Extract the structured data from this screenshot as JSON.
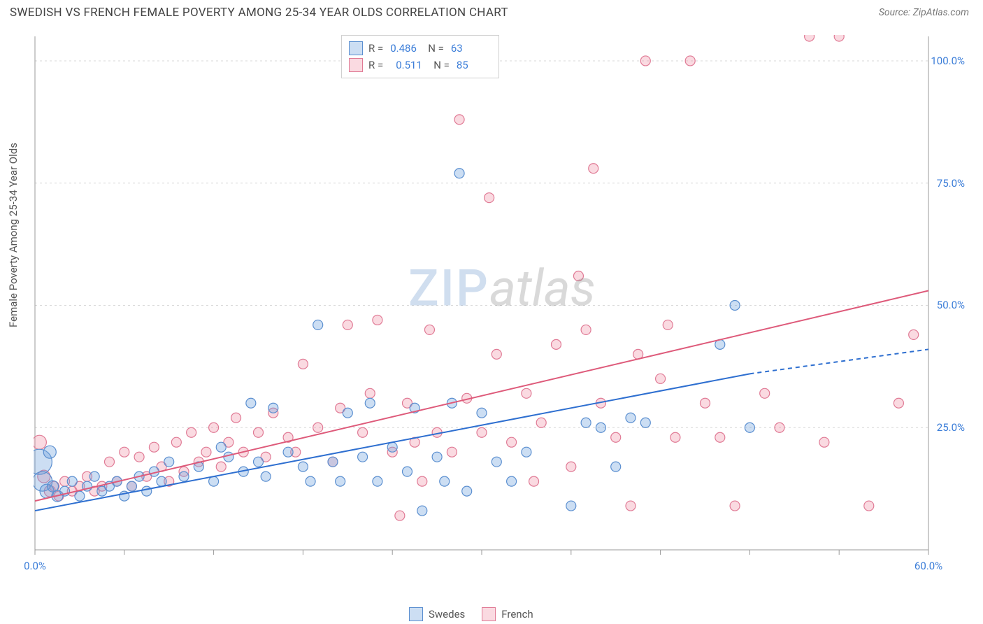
{
  "header": {
    "title": "SWEDISH VS FRENCH FEMALE POVERTY AMONG 25-34 YEAR OLDS CORRELATION CHART",
    "source_prefix": "Source: ",
    "source_name": "ZipAtlas.com"
  },
  "watermark": {
    "zip": "ZIP",
    "atlas": "atlas"
  },
  "chart": {
    "type": "scatter",
    "ylabel": "Female Poverty Among 25-34 Year Olds",
    "xlim": [
      0,
      60
    ],
    "ylim": [
      0,
      105
    ],
    "xtick_positions": [
      0,
      6,
      12,
      18,
      24,
      30,
      36,
      42,
      48,
      54,
      60
    ],
    "xtick_labels_shown": {
      "0": "0.0%",
      "60": "60.0%"
    },
    "ytick_positions": [
      25,
      50,
      75,
      100
    ],
    "ytick_labels": [
      "25.0%",
      "50.0%",
      "75.0%",
      "100.0%"
    ],
    "grid_color": "#d8d8d8",
    "axis_color": "#999999",
    "background": "#ffffff",
    "series": {
      "swedes": {
        "label": "Swedes",
        "fill": "rgba(110,160,220,0.35)",
        "stroke": "#5b8fd0",
        "line_color": "#2e6fd0",
        "trend": {
          "x1": 0,
          "y1": 8,
          "x2": 48,
          "y2": 36,
          "dash_after_x": 48,
          "x_end": 60,
          "y_end": 41
        },
        "stats": {
          "R_label": "R =",
          "R": "0.486",
          "N_label": "N =",
          "N": "63"
        },
        "points": [
          {
            "x": 0.3,
            "y": 18,
            "r": 18
          },
          {
            "x": 0.5,
            "y": 14,
            "r": 14
          },
          {
            "x": 0.8,
            "y": 12,
            "r": 10
          },
          {
            "x": 1.0,
            "y": 20,
            "r": 9
          },
          {
            "x": 1.2,
            "y": 13,
            "r": 8
          },
          {
            "x": 1.5,
            "y": 11,
            "r": 8
          },
          {
            "x": 2,
            "y": 12,
            "r": 7
          },
          {
            "x": 2.5,
            "y": 14,
            "r": 7
          },
          {
            "x": 3,
            "y": 11,
            "r": 7
          },
          {
            "x": 3.5,
            "y": 13,
            "r": 7
          },
          {
            "x": 4,
            "y": 15,
            "r": 7
          },
          {
            "x": 4.5,
            "y": 12,
            "r": 7
          },
          {
            "x": 5,
            "y": 13,
            "r": 7
          },
          {
            "x": 5.5,
            "y": 14,
            "r": 7
          },
          {
            "x": 6,
            "y": 11,
            "r": 7
          },
          {
            "x": 6.5,
            "y": 13,
            "r": 7
          },
          {
            "x": 7,
            "y": 15,
            "r": 7
          },
          {
            "x": 7.5,
            "y": 12,
            "r": 7
          },
          {
            "x": 8,
            "y": 16,
            "r": 7
          },
          {
            "x": 8.5,
            "y": 14,
            "r": 7
          },
          {
            "x": 9,
            "y": 18,
            "r": 7
          },
          {
            "x": 10,
            "y": 15,
            "r": 7
          },
          {
            "x": 11,
            "y": 17,
            "r": 7
          },
          {
            "x": 12,
            "y": 14,
            "r": 7
          },
          {
            "x": 12.5,
            "y": 21,
            "r": 7
          },
          {
            "x": 13,
            "y": 19,
            "r": 7
          },
          {
            "x": 14,
            "y": 16,
            "r": 7
          },
          {
            "x": 14.5,
            "y": 30,
            "r": 7
          },
          {
            "x": 15,
            "y": 18,
            "r": 7
          },
          {
            "x": 15.5,
            "y": 15,
            "r": 7
          },
          {
            "x": 16,
            "y": 29,
            "r": 7
          },
          {
            "x": 17,
            "y": 20,
            "r": 7
          },
          {
            "x": 18,
            "y": 17,
            "r": 7
          },
          {
            "x": 18.5,
            "y": 14,
            "r": 7
          },
          {
            "x": 19,
            "y": 46,
            "r": 7
          },
          {
            "x": 20,
            "y": 18,
            "r": 7
          },
          {
            "x": 20.5,
            "y": 14,
            "r": 7
          },
          {
            "x": 21,
            "y": 28,
            "r": 7
          },
          {
            "x": 22,
            "y": 19,
            "r": 7
          },
          {
            "x": 22.5,
            "y": 30,
            "r": 7
          },
          {
            "x": 23,
            "y": 14,
            "r": 7
          },
          {
            "x": 24,
            "y": 21,
            "r": 7
          },
          {
            "x": 25,
            "y": 16,
            "r": 7
          },
          {
            "x": 25.5,
            "y": 29,
            "r": 7
          },
          {
            "x": 26,
            "y": 8,
            "r": 7
          },
          {
            "x": 27,
            "y": 19,
            "r": 7
          },
          {
            "x": 27.5,
            "y": 14,
            "r": 7
          },
          {
            "x": 28,
            "y": 30,
            "r": 7
          },
          {
            "x": 28.5,
            "y": 77,
            "r": 7
          },
          {
            "x": 29,
            "y": 12,
            "r": 7
          },
          {
            "x": 30,
            "y": 28,
            "r": 7
          },
          {
            "x": 31,
            "y": 18,
            "r": 7
          },
          {
            "x": 32,
            "y": 14,
            "r": 7
          },
          {
            "x": 33,
            "y": 20,
            "r": 7
          },
          {
            "x": 36,
            "y": 9,
            "r": 7
          },
          {
            "x": 37,
            "y": 26,
            "r": 7
          },
          {
            "x": 38,
            "y": 25,
            "r": 7
          },
          {
            "x": 39,
            "y": 17,
            "r": 7
          },
          {
            "x": 40,
            "y": 27,
            "r": 7
          },
          {
            "x": 41,
            "y": 26,
            "r": 7
          },
          {
            "x": 46,
            "y": 42,
            "r": 7
          },
          {
            "x": 47,
            "y": 50,
            "r": 7
          },
          {
            "x": 48,
            "y": 25,
            "r": 7
          }
        ]
      },
      "french": {
        "label": "French",
        "fill": "rgba(240,150,170,0.35)",
        "stroke": "#e07a95",
        "line_color": "#de5a7a",
        "trend": {
          "x1": 0,
          "y1": 10,
          "x2": 60,
          "y2": 53
        },
        "stats": {
          "R_label": "R =",
          "R": "0.511",
          "N_label": "N =",
          "N": "85"
        },
        "points": [
          {
            "x": 0.3,
            "y": 22,
            "r": 10
          },
          {
            "x": 0.6,
            "y": 15,
            "r": 9
          },
          {
            "x": 1,
            "y": 12,
            "r": 8
          },
          {
            "x": 1.3,
            "y": 13,
            "r": 7
          },
          {
            "x": 1.6,
            "y": 11,
            "r": 7
          },
          {
            "x": 2,
            "y": 14,
            "r": 7
          },
          {
            "x": 2.5,
            "y": 12,
            "r": 7
          },
          {
            "x": 3,
            "y": 13,
            "r": 7
          },
          {
            "x": 3.5,
            "y": 15,
            "r": 7
          },
          {
            "x": 4,
            "y": 12,
            "r": 7
          },
          {
            "x": 4.5,
            "y": 13,
            "r": 7
          },
          {
            "x": 5,
            "y": 18,
            "r": 7
          },
          {
            "x": 5.5,
            "y": 14,
            "r": 7
          },
          {
            "x": 6,
            "y": 20,
            "r": 7
          },
          {
            "x": 6.5,
            "y": 13,
            "r": 7
          },
          {
            "x": 7,
            "y": 19,
            "r": 7
          },
          {
            "x": 7.5,
            "y": 15,
            "r": 7
          },
          {
            "x": 8,
            "y": 21,
            "r": 7
          },
          {
            "x": 8.5,
            "y": 17,
            "r": 7
          },
          {
            "x": 9,
            "y": 14,
            "r": 7
          },
          {
            "x": 9.5,
            "y": 22,
            "r": 7
          },
          {
            "x": 10,
            "y": 16,
            "r": 7
          },
          {
            "x": 10.5,
            "y": 24,
            "r": 7
          },
          {
            "x": 11,
            "y": 18,
            "r": 7
          },
          {
            "x": 11.5,
            "y": 20,
            "r": 7
          },
          {
            "x": 12,
            "y": 25,
            "r": 7
          },
          {
            "x": 12.5,
            "y": 17,
            "r": 7
          },
          {
            "x": 13,
            "y": 22,
            "r": 7
          },
          {
            "x": 13.5,
            "y": 27,
            "r": 7
          },
          {
            "x": 14,
            "y": 20,
            "r": 7
          },
          {
            "x": 15,
            "y": 24,
            "r": 7
          },
          {
            "x": 15.5,
            "y": 19,
            "r": 7
          },
          {
            "x": 16,
            "y": 28,
            "r": 7
          },
          {
            "x": 17,
            "y": 23,
            "r": 7
          },
          {
            "x": 17.5,
            "y": 20,
            "r": 7
          },
          {
            "x": 18,
            "y": 38,
            "r": 7
          },
          {
            "x": 19,
            "y": 25,
            "r": 7
          },
          {
            "x": 20,
            "y": 18,
            "r": 7
          },
          {
            "x": 20.5,
            "y": 29,
            "r": 7
          },
          {
            "x": 21,
            "y": 46,
            "r": 7
          },
          {
            "x": 22,
            "y": 24,
            "r": 7
          },
          {
            "x": 22.5,
            "y": 32,
            "r": 7
          },
          {
            "x": 23,
            "y": 47,
            "r": 7
          },
          {
            "x": 24,
            "y": 20,
            "r": 7
          },
          {
            "x": 24.5,
            "y": 7,
            "r": 7
          },
          {
            "x": 25,
            "y": 30,
            "r": 7
          },
          {
            "x": 25.5,
            "y": 22,
            "r": 7
          },
          {
            "x": 26,
            "y": 14,
            "r": 7
          },
          {
            "x": 26.5,
            "y": 45,
            "r": 7
          },
          {
            "x": 27,
            "y": 24,
            "r": 7
          },
          {
            "x": 28,
            "y": 20,
            "r": 7
          },
          {
            "x": 28.5,
            "y": 88,
            "r": 7
          },
          {
            "x": 29,
            "y": 31,
            "r": 7
          },
          {
            "x": 30,
            "y": 24,
            "r": 7
          },
          {
            "x": 30.5,
            "y": 72,
            "r": 7
          },
          {
            "x": 31,
            "y": 40,
            "r": 7
          },
          {
            "x": 32,
            "y": 22,
            "r": 7
          },
          {
            "x": 33,
            "y": 32,
            "r": 7
          },
          {
            "x": 33.5,
            "y": 14,
            "r": 7
          },
          {
            "x": 34,
            "y": 26,
            "r": 7
          },
          {
            "x": 35,
            "y": 42,
            "r": 7
          },
          {
            "x": 36,
            "y": 17,
            "r": 7
          },
          {
            "x": 36.5,
            "y": 56,
            "r": 7
          },
          {
            "x": 37,
            "y": 45,
            "r": 7
          },
          {
            "x": 37.5,
            "y": 78,
            "r": 7
          },
          {
            "x": 38,
            "y": 30,
            "r": 7
          },
          {
            "x": 39,
            "y": 23,
            "r": 7
          },
          {
            "x": 40,
            "y": 9,
            "r": 7
          },
          {
            "x": 40.5,
            "y": 40,
            "r": 7
          },
          {
            "x": 41,
            "y": 100,
            "r": 7
          },
          {
            "x": 42,
            "y": 35,
            "r": 7
          },
          {
            "x": 42.5,
            "y": 46,
            "r": 7
          },
          {
            "x": 43,
            "y": 23,
            "r": 7
          },
          {
            "x": 44,
            "y": 100,
            "r": 7
          },
          {
            "x": 45,
            "y": 30,
            "r": 7
          },
          {
            "x": 46,
            "y": 23,
            "r": 7
          },
          {
            "x": 47,
            "y": 9,
            "r": 7
          },
          {
            "x": 49,
            "y": 32,
            "r": 7
          },
          {
            "x": 50,
            "y": 25,
            "r": 7
          },
          {
            "x": 52,
            "y": 105,
            "r": 7
          },
          {
            "x": 53,
            "y": 22,
            "r": 7
          },
          {
            "x": 54,
            "y": 105,
            "r": 7
          },
          {
            "x": 56,
            "y": 9,
            "r": 7
          },
          {
            "x": 58,
            "y": 30,
            "r": 7
          },
          {
            "x": 59,
            "y": 44,
            "r": 7
          }
        ]
      }
    }
  }
}
